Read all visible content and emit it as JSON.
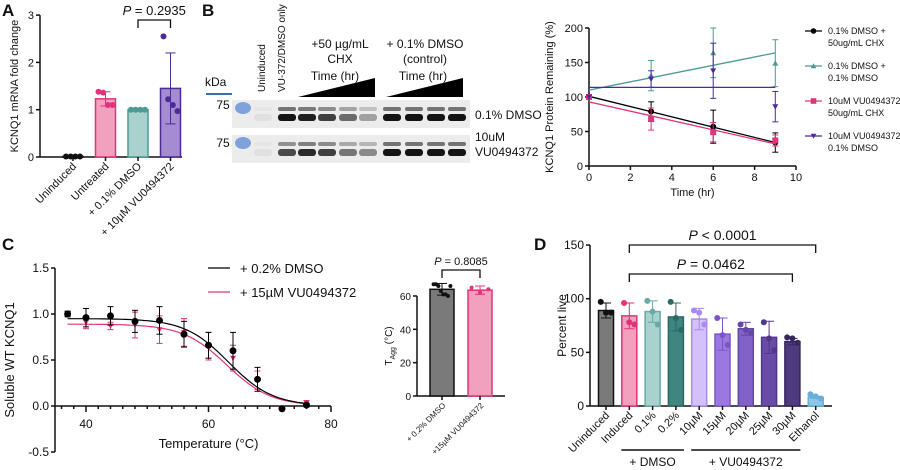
{
  "panels": {
    "A": "A",
    "B": "B",
    "C": "C",
    "D": "D"
  },
  "blot": {
    "kda_label": "kDa",
    "marker_labels": [
      "75",
      "75"
    ],
    "lane_labels": [
      "Uninduced",
      "VU-372/DMSO only"
    ],
    "group1_label": [
      "+50 µg/mL",
      "CHX"
    ],
    "group2_label": [
      "+ 0.1% DMSO",
      "(control)"
    ],
    "time_label": "Time (hr)",
    "row_labels": [
      [
        "0.1% DMSO"
      ],
      [
        "10uM",
        "VU0494372"
      ]
    ],
    "band_intensity": [
      [
        0.05,
        1,
        0.95,
        0.8,
        0.6,
        0.35,
        1,
        1,
        1,
        1
      ],
      [
        0.05,
        0.75,
        0.9,
        0.8,
        0.55,
        0.45,
        1,
        1,
        1,
        1
      ]
    ]
  },
  "chart_data": [
    {
      "id": "A",
      "type": "bar",
      "ylabel": "KCNQ1 mRNA fold change",
      "ylim": [
        0,
        3
      ],
      "yticks": [
        0,
        1,
        2,
        3
      ],
      "categories": [
        "Uninduced",
        "Untreated",
        "+ 0.1% DMSO",
        "+ 10µM VU0494372"
      ],
      "values": [
        0.01,
        1.23,
        1.0,
        1.45
      ],
      "errors": [
        0.01,
        0.15,
        0.01,
        0.75
      ],
      "points": [
        [
          0.01,
          0.01,
          0.01,
          0.01
        ],
        [
          1.38,
          1.36,
          1.1,
          1.1
        ],
        [
          1.0,
          1.0,
          1.0,
          1.0
        ],
        [
          2.55,
          1.22,
          1.1,
          0.97
        ]
      ],
      "colors": {
        "fill": [
          "#444444",
          "#f1a0bd",
          "#a9d2cf",
          "#a58bd0"
        ],
        "edge": [
          "#111111",
          "#e2337a",
          "#4c9a94",
          "#4b2a9a"
        ]
      },
      "annotation": {
        "text": "P = 0.2935",
        "between": [
          2,
          3
        ]
      }
    },
    {
      "id": "B",
      "type": "line",
      "xlabel": "Time (hr)",
      "ylabel": "KCNQ1 Protein Remaining (%)",
      "xlim": [
        0,
        10
      ],
      "ylim": [
        0,
        200
      ],
      "xticks": [
        0,
        2,
        4,
        6,
        8,
        10
      ],
      "yticks": [
        0,
        50,
        100,
        150,
        200
      ],
      "x": [
        0,
        3,
        6,
        9
      ],
      "legend_placement": "right",
      "series": [
        {
          "name": "0.1% DMSO + 50ug/mL CHX",
          "legend_lines": [
            "0.1% DMSO +",
            "50ug/mL CHX"
          ],
          "marker": "circle",
          "color": "#000000",
          "values": [
            100,
            79,
            57,
            34
          ],
          "errors": [
            0,
            14,
            24,
            14
          ],
          "fit": [
            101,
            34
          ]
        },
        {
          "name": "0.1% DMSO + 0.1% DMSO",
          "legend_lines": [
            "0.1% DMSO +",
            "0.1% DMSO"
          ],
          "marker": "triangle-up",
          "color": "#4a9a94",
          "values": [
            100,
            131,
            164,
            149
          ],
          "errors": [
            0,
            22,
            36,
            34
          ],
          "fit": [
            110,
            164
          ]
        },
        {
          "name": "10uM VU0494372 + 50ug/mL CHX",
          "legend_lines": [
            "10uM VU0494372 +",
            "50ug/mL CHX"
          ],
          "marker": "square",
          "color": "#e2337a",
          "values": [
            100,
            68,
            49,
            37
          ],
          "errors": [
            0,
            16,
            14,
            8
          ],
          "fit": [
            93,
            32
          ]
        },
        {
          "name": "10uM VU0494372 + 0.1% DMSO",
          "legend_lines": [
            "10uM VU0494372 +",
            "0.1% DMSO"
          ],
          "marker": "triangle-down",
          "color": "#4b2a9a",
          "values": [
            100,
            126,
            138,
            86
          ],
          "errors": [
            0,
            12,
            40,
            22
          ],
          "fit": [
            114,
            114
          ]
        }
      ]
    },
    {
      "id": "C",
      "type": "line",
      "xlabel": "Temperature (°C)",
      "ylabel": "Soluble WT KCNQ1",
      "xlim": [
        35,
        80
      ],
      "ylim": [
        -0.5,
        1.5
      ],
      "xticks": [
        40,
        60,
        80
      ],
      "yticks": [
        -0.5,
        0.0,
        0.5,
        1.0,
        1.5
      ],
      "x": [
        37,
        40,
        44,
        48,
        52,
        56,
        60,
        64,
        68,
        72,
        76
      ],
      "legend_placement": "top-right",
      "series": [
        {
          "name": "+ 0.2% DMSO",
          "marker": "circle",
          "color": "#000000",
          "values": [
            1.0,
            0.96,
            0.98,
            0.92,
            0.93,
            0.78,
            0.66,
            0.6,
            0.29,
            -0.03,
            0.01
          ],
          "errors": [
            0.03,
            0.1,
            0.1,
            0.12,
            0.15,
            0.14,
            0.14,
            0.2,
            0.13,
            0.01,
            0.02
          ],
          "fit": {
            "top": 0.95,
            "bottom": 0.0,
            "tm": 63.3,
            "slope": 3.6
          }
        },
        {
          "name": "+ 15µM VU0494372",
          "marker": "triangle-down",
          "color": "#e2337a",
          "values": [
            1.0,
            0.91,
            0.87,
            0.88,
            0.83,
            0.8,
            0.65,
            0.52,
            0.28,
            -0.02,
            0.03
          ],
          "errors": [
            0.03,
            0.07,
            0.04,
            0.14,
            0.15,
            0.15,
            0.15,
            0.14,
            0.1,
            0.01,
            0.03
          ],
          "fit": {
            "top": 0.89,
            "bottom": 0.0,
            "tm": 63.0,
            "slope": 3.6
          }
        }
      ]
    },
    {
      "id": "C-inset",
      "type": "bar",
      "ylabel": "T",
      "ylabel_sub": "Agg",
      "ylabel_unit": " (°C)",
      "ylim": [
        0,
        80
      ],
      "yticks": [
        0,
        20,
        40,
        60
      ],
      "categories": [
        "+ 0.2% DMSO",
        "+15µM VU0494372"
      ],
      "values": [
        64,
        63.5
      ],
      "errors": [
        3.5,
        2.5
      ],
      "points": [
        [
          67,
          67,
          66,
          63,
          61,
          61,
          60,
          66
        ],
        [
          65,
          62,
          64
        ]
      ],
      "colors": {
        "fill": [
          "#7a7a7a",
          "#f1a0bd"
        ],
        "edge": [
          "#111111",
          "#e2337a"
        ]
      },
      "annotation": {
        "text": "P = 0.8085",
        "between": [
          0,
          1
        ]
      }
    },
    {
      "id": "D",
      "type": "bar",
      "ylabel": "Percent live",
      "ylim": [
        0,
        150
      ],
      "yticks": [
        0,
        50,
        100,
        150
      ],
      "categories": [
        "Uninduced",
        "Induced",
        "0.1%",
        "0.2%",
        "10µM",
        "15µM",
        "20µM",
        "25µM",
        "30µM",
        "Ethanol"
      ],
      "values": [
        89,
        84,
        88,
        83,
        81,
        67,
        72,
        64,
        60,
        8
      ],
      "errors": [
        7,
        12,
        10,
        13,
        10,
        15,
        6,
        15,
        3,
        1
      ],
      "points": [
        [
          97,
          87,
          87
        ],
        [
          96,
          78,
          76
        ],
        [
          98,
          88,
          76
        ],
        [
          97,
          82,
          71
        ],
        [
          89,
          87,
          76
        ],
        [
          82,
          66,
          57
        ],
        [
          76,
          71,
          68
        ],
        [
          78,
          63,
          52
        ],
        [
          64,
          63,
          59
        ],
        [
          11,
          9,
          7
        ]
      ],
      "colors": {
        "fill": [
          "#7a7a7a",
          "#f1a0bd",
          "#a9d2cf",
          "#3f8580",
          "#d4c1fb",
          "#9b78e0",
          "#8262c8",
          "#6a4ca8",
          "#4f3a80",
          "#8cc6e8"
        ],
        "edge": [
          "#111111",
          "#e2337a",
          "#6aa9a3",
          "#2c6763",
          "#a98aef",
          "#7a55c8",
          "#6447a8",
          "#4f3888",
          "#35265e",
          "#6aaed8"
        ]
      },
      "group_labels": [
        {
          "text": "+ DMSO",
          "from": 1,
          "to": 3
        },
        {
          "text": "+ VU0494372",
          "from": 4,
          "to": 8
        }
      ],
      "annotations": [
        {
          "text": "P < 0.0001",
          "between": [
            1,
            9
          ]
        },
        {
          "text": "P = 0.0462",
          "between": [
            1,
            8
          ]
        }
      ]
    }
  ]
}
